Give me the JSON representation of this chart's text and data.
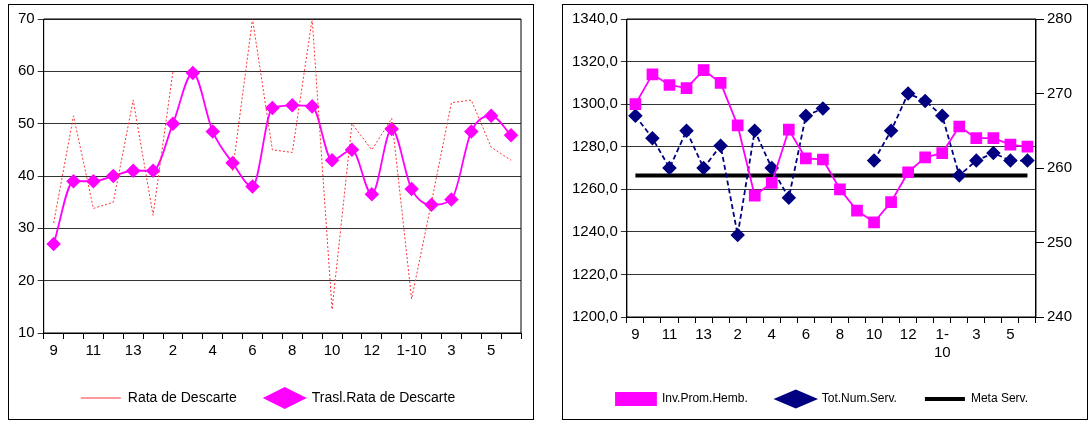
{
  "chart_data": [
    {
      "type": "line",
      "categories": [
        "9",
        null,
        "11",
        null,
        "13",
        null,
        "2",
        null,
        "4",
        null,
        "6",
        null,
        "8",
        null,
        "10",
        null,
        "12",
        null,
        "1-10",
        null,
        "3",
        null,
        "5",
        null
      ],
      "series": [
        {
          "name": "Rata de Descarte",
          "color": "#ff3333",
          "marker": "none",
          "line_style": "dotted",
          "values": [
            31,
            51.5,
            33.8,
            35,
            54.5,
            32.5,
            60,
            null,
            null,
            41,
            70,
            45,
            44.5,
            70,
            14.5,
            50,
            45,
            51,
            16.5,
            35,
            54,
            54.5,
            45.5,
            43
          ]
        },
        {
          "name": "Trasl.Rata de Descarte",
          "color": "#ff00ff",
          "marker": "diamond",
          "line_style": "solid",
          "values": [
            27,
            39,
            39,
            40,
            41,
            41,
            50,
            59.7,
            48.5,
            42.5,
            38,
            53,
            53.5,
            53.3,
            43,
            45,
            36.5,
            49,
            37.5,
            34.5,
            35.5,
            48.5,
            51.5,
            47.8
          ]
        }
      ],
      "ylim": [
        10,
        70
      ],
      "yticks": [
        10,
        20,
        30,
        40,
        50,
        60,
        70
      ],
      "grid": "y",
      "legend": "bottom"
    },
    {
      "type": "line",
      "categories": [
        "9",
        null,
        "11",
        null,
        "13",
        null,
        "2",
        null,
        "4",
        null,
        "6",
        null,
        "8",
        null,
        "10",
        null,
        "12",
        null,
        "1-10",
        null,
        "3",
        null,
        "5",
        null
      ],
      "series": [
        {
          "name": "Inv.Prom.Hemb.",
          "color": "#ff00ff",
          "marker": "square",
          "line_style": "solid",
          "values": [
            1300,
            1314,
            1309,
            1307.5,
            1316,
            1310,
            1290,
            1257,
            1263,
            1288,
            1274.5,
            1274,
            1260,
            1250,
            1244.5,
            1254,
            1268,
            1275,
            1277,
            1289.5,
            1284,
            1284,
            1281,
            1280
          ]
        },
        {
          "name": "Tot.Num.Serv.",
          "color": "#000080",
          "marker": "diamond",
          "line_style": "dashed",
          "axis": "y2",
          "values": [
            267,
            264,
            260,
            265,
            260,
            263,
            251,
            265,
            260,
            256,
            267,
            268,
            null,
            null,
            261,
            265,
            270,
            269,
            267,
            259,
            261,
            262,
            261,
            261
          ]
        },
        {
          "name": "Meta Serv.",
          "color": "#000000",
          "marker": "none",
          "line_style": "solid",
          "axis": "y2",
          "values": [
            259,
            259,
            259,
            259,
            259,
            259,
            259,
            259,
            259,
            259,
            259,
            259,
            259,
            259,
            259,
            259,
            259,
            259,
            259,
            259,
            259,
            259,
            259,
            259
          ]
        }
      ],
      "ylim": [
        1200,
        1340
      ],
      "yticks": [
        {
          "value": 1200,
          "label": "1200,0"
        },
        {
          "value": 1220,
          "label": "1220,0"
        },
        {
          "value": 1240,
          "label": "1240,0"
        },
        {
          "value": 1260,
          "label": "1260,0"
        },
        {
          "value": 1280,
          "label": "1280,0"
        },
        {
          "value": 1300,
          "label": "1300,0"
        },
        {
          "value": 1320,
          "label": "1320,0"
        },
        {
          "value": 1340,
          "label": "1340,0"
        }
      ],
      "y2lim": [
        240,
        280
      ],
      "y2ticks": [
        240,
        250,
        260,
        270,
        280
      ],
      "grid": "y",
      "legend": "bottom"
    }
  ]
}
